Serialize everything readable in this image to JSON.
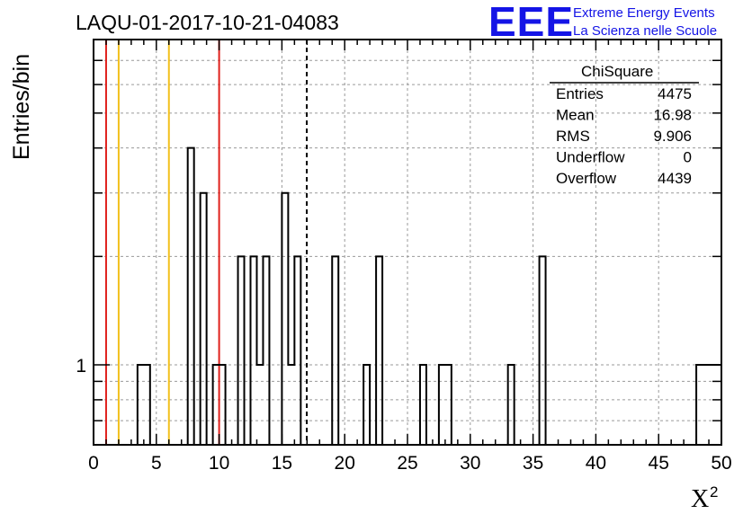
{
  "header": {
    "title": "LAQU-01-2017-10-21-04083",
    "logo_text": "EEE",
    "brand_line1": "Extreme Energy Events",
    "brand_line2": "La Scienza nelle Scuole"
  },
  "colors": {
    "histogram": "#000000",
    "red_line": "#e0201c",
    "yellow_line": "#f2c01c",
    "grid": "#9a9a9a",
    "logo": "#1414e6"
  },
  "stats": {
    "title": "ChiSquare",
    "rows": [
      {
        "label": "Entries",
        "value": "4475"
      },
      {
        "label": "Mean",
        "value": "16.98"
      },
      {
        "label": "RMS",
        "value": "9.906"
      },
      {
        "label": "Underflow",
        "value": "0"
      },
      {
        "label": "Overflow",
        "value": "4439"
      }
    ]
  },
  "chart_data": {
    "type": "bar",
    "title": "LAQU-01-2017-10-21-04083",
    "xlabel": "X",
    "xlabel_superscript": "2",
    "ylabel": "Entries/bin",
    "xlim": [
      0,
      50
    ],
    "ylim": [
      0.6,
      8
    ],
    "yscale": "log",
    "grid": true,
    "bin_width": 0.5,
    "x_ticks": [
      0,
      5,
      10,
      15,
      20,
      25,
      30,
      35,
      40,
      45,
      50
    ],
    "x_tick_labels": [
      "0",
      "5",
      "10",
      "15",
      "20",
      "25",
      "30",
      "35",
      "40",
      "45",
      "50"
    ],
    "y_ticks": [
      1
    ],
    "y_tick_labels": [
      "1"
    ],
    "bins": [
      {
        "x": 3.5,
        "value": 1
      },
      {
        "x": 4.0,
        "value": 1
      },
      {
        "x": 7.5,
        "value": 4
      },
      {
        "x": 8.5,
        "value": 3
      },
      {
        "x": 9.5,
        "value": 1
      },
      {
        "x": 10.0,
        "value": 1
      },
      {
        "x": 11.5,
        "value": 2
      },
      {
        "x": 12.5,
        "value": 2
      },
      {
        "x": 13.0,
        "value": 1
      },
      {
        "x": 13.5,
        "value": 2
      },
      {
        "x": 15.0,
        "value": 3
      },
      {
        "x": 15.5,
        "value": 1
      },
      {
        "x": 16.0,
        "value": 2
      },
      {
        "x": 19.0,
        "value": 2
      },
      {
        "x": 21.5,
        "value": 1
      },
      {
        "x": 22.5,
        "value": 2
      },
      {
        "x": 26.0,
        "value": 1
      },
      {
        "x": 27.5,
        "value": 1
      },
      {
        "x": 28.0,
        "value": 1
      },
      {
        "x": 33.0,
        "value": 1
      },
      {
        "x": 35.5,
        "value": 2
      },
      {
        "x": 48.0,
        "value": 1
      },
      {
        "x": 48.5,
        "value": 1
      },
      {
        "x": 49.0,
        "value": 1
      },
      {
        "x": 49.5,
        "value": 1
      }
    ],
    "vertical_lines": [
      {
        "x": 1,
        "color": "#e0201c",
        "style": "solid"
      },
      {
        "x": 2,
        "color": "#f2c01c",
        "style": "solid"
      },
      {
        "x": 6,
        "color": "#f2c01c",
        "style": "solid"
      },
      {
        "x": 10,
        "color": "#e0201c",
        "style": "solid"
      },
      {
        "x": 16.98,
        "color": "#000000",
        "style": "dashed"
      }
    ]
  }
}
